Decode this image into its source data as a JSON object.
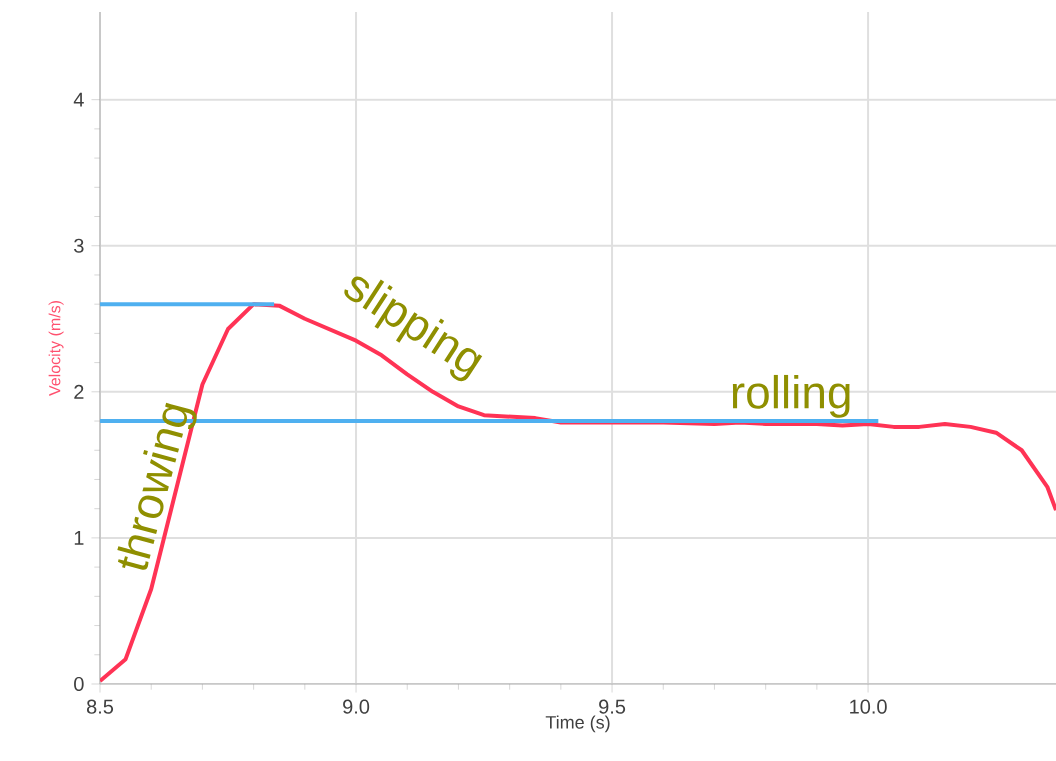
{
  "chart_data": {
    "type": "line",
    "xlabel": "Time (s)",
    "ylabel": "Velocity (m/s)",
    "x": [
      8.5,
      8.55,
      8.6,
      8.65,
      8.7,
      8.75,
      8.8,
      8.85,
      8.9,
      9.0,
      9.05,
      9.1,
      9.15,
      9.2,
      9.25,
      9.35,
      9.4,
      9.5,
      9.6,
      9.7,
      9.75,
      9.8,
      9.9,
      9.95,
      10.0,
      10.05,
      10.1,
      10.15,
      10.2,
      10.25,
      10.3,
      10.35,
      10.367
    ],
    "series": [
      {
        "color": "#ff3355",
        "values": [
          0.02,
          0.17,
          0.65,
          1.35,
          2.05,
          2.43,
          2.6,
          2.59,
          2.5,
          2.35,
          2.25,
          2.12,
          2.0,
          1.9,
          1.84,
          1.82,
          1.79,
          1.79,
          1.79,
          1.78,
          1.79,
          1.78,
          1.78,
          1.77,
          1.78,
          1.76,
          1.76,
          1.78,
          1.76,
          1.72,
          1.6,
          1.35,
          1.19
        ]
      },
      {
        "color": "#4fb0f0",
        "x": [
          8.5,
          8.84
        ],
        "values": [
          2.6,
          2.6
        ]
      },
      {
        "color": "#4fb0f0",
        "x": [
          8.5,
          10.02
        ],
        "values": [
          1.8,
          1.8
        ]
      }
    ],
    "annotations": [
      "throwing",
      "slipping",
      "rolling"
    ],
    "xlim": [
      8.5,
      10.367
    ],
    "ylim": [
      0,
      4.6
    ],
    "xticks": [
      8.5,
      {
        "value": 9.0,
        "label": "9.0"
      },
      9.5,
      {
        "value": 10.0,
        "label": "10.0"
      }
    ],
    "yticks": [
      0,
      1,
      2,
      3,
      4
    ],
    "grid": true,
    "marker": "none",
    "line_style": "solid"
  }
}
